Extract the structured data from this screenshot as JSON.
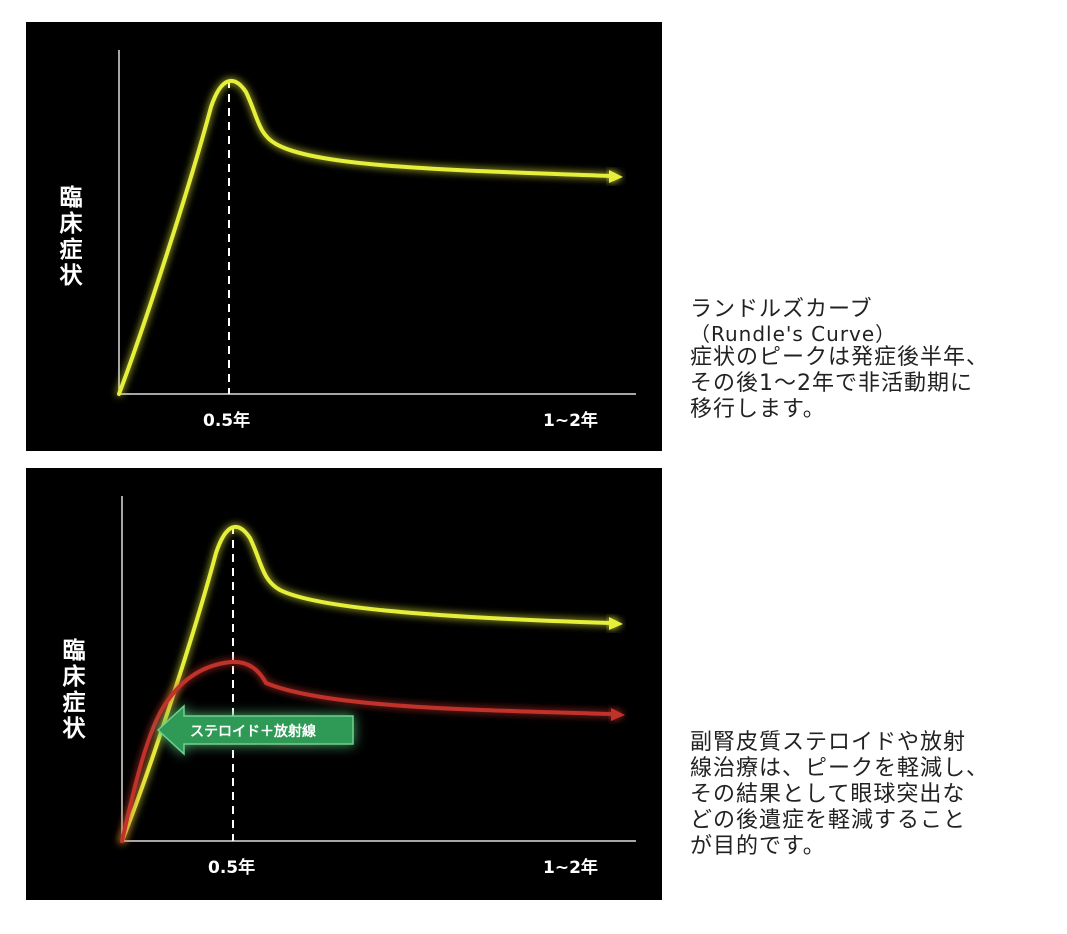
{
  "colors": {
    "background_panel": "#000000",
    "untreated_curve": "#e6f03a",
    "treated_curve": "#c0302a",
    "treatment_arrow": "#2e9a55",
    "axis": "#dddddd",
    "text_caption": "#222222"
  },
  "top_chart": {
    "ylabel_chars": [
      "臨",
      "床",
      "症",
      "状"
    ],
    "xticks": [
      "0.5年",
      "1~2年"
    ]
  },
  "top_caption": {
    "lines": [
      "ランドルズカーブ",
      "（Rundle's Curve）",
      "症状のピークは発症後半年、",
      "その後1〜2年で非活動期に",
      "移行します。"
    ]
  },
  "bottom_chart": {
    "ylabel_chars": [
      "臨",
      "床",
      "症",
      "状"
    ],
    "xticks": [
      "0.5年",
      "1~2年"
    ],
    "treatment_label": "ステロイド＋放射線"
  },
  "bottom_caption": {
    "lines": [
      "副腎皮質ステロイドや放射",
      "線治療は、ピークを軽減し、",
      "その結果として眼球突出な",
      "どの後遺症を軽減すること",
      "が目的です。"
    ]
  }
}
